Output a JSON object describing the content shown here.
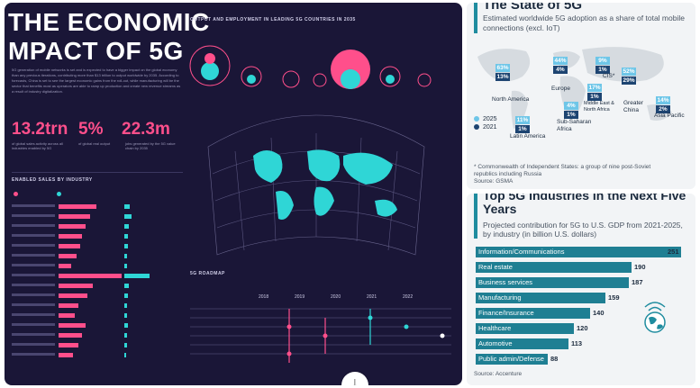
{
  "left_card": {
    "title_line1": "THE ECONOMIC",
    "title_line2": "MPACT OF 5G",
    "intro": "5G generation of mobile networks is set and is expected to have a bigger impact on the global economy than any previous iterations, contributing more than $13 trillion to output worldwide by 2035. According to forecasts, China is set to see the largest economic gains from the roll-out, while manufacturing will be the sector that benefits most as operators are able to ramp up production and create new revenue streams as a result of industry digitalization.",
    "stats": [
      {
        "value": "13.2trn",
        "caption": "of global sales activity across all industries enabled by 5G"
      },
      {
        "value": "5%",
        "caption": "of global real output"
      },
      {
        "value": "22.3m",
        "caption": "jobs generated by the 5G value chain by 2035"
      }
    ],
    "sales_section": "ENABLED SALES BY INDUSTRY",
    "output_section": "OUTPUT AND EMPLOYMENT IN LEADING 5G COUNTRIES IN 2035",
    "roadmap_section": "5G ROADMAP",
    "roadmap_years": [
      "2018",
      "2019",
      "2020",
      "2021",
      "2022"
    ],
    "countries": [
      "United States",
      "Germany",
      "Japan",
      "China",
      "South Korea",
      "France",
      "UK"
    ],
    "colors": {
      "pink": "#ff4f8b",
      "cyan": "#2fd6d6",
      "bg": "#1a1637"
    },
    "download_icon": "download-arrow-icon"
  },
  "adoption_card": {
    "title": "The State of 5G",
    "subtitle": "Estimated worldwide 5G adoption as a share of total mobile connections (excl. IoT)",
    "regions": [
      {
        "name": "North America",
        "y2025": "63%",
        "y2021": "13%"
      },
      {
        "name": "Europe",
        "y2025": "44%",
        "y2021": "4%"
      },
      {
        "name": "CIS*",
        "y2025": "9%",
        "y2021": "1%"
      },
      {
        "name": "Greater China",
        "y2025": "52%",
        "y2021": "29%"
      },
      {
        "name": "Middle East & North Africa",
        "y2025": "17%",
        "y2021": "1%"
      },
      {
        "name": "Asia Pacific",
        "y2025": "14%",
        "y2021": "2%"
      },
      {
        "name": "Sub-Saharan Africa",
        "y2025": "4%",
        "y2021": "1%"
      },
      {
        "name": "Latin America",
        "y2025": "11%",
        "y2021": "1%"
      }
    ],
    "legend": {
      "y2025": "2025",
      "y2021": "2021"
    },
    "footnote": "* Commonwealth of Independent States: a group of nine post-Soviet republics including Russia",
    "source": "Source: GSMA",
    "colors": {
      "y2025": "#6ec6e8",
      "y2021": "#1d4471"
    }
  },
  "industries_card": {
    "title": "Top 5G Industries in the Next Five Years",
    "subtitle": "Projected contribution for 5G to U.S. GDP from 2021-2025, by industry (in billion U.S. dollars)",
    "source": "Source: Accenture",
    "chart_data": {
      "type": "bar",
      "categories": [
        "Information/Communications",
        "Real estate",
        "Business services",
        "Manufacturing",
        "Finance/Insurance",
        "Healthcare",
        "Automotive",
        "Public admin/Defense"
      ],
      "values": [
        251,
        190,
        187,
        159,
        140,
        120,
        113,
        88
      ],
      "title": "Top 5G Industries in the Next Five Years",
      "xlabel": "",
      "ylabel": "",
      "xlim": [
        0,
        251
      ]
    },
    "bar_color": "#1f7f93"
  }
}
